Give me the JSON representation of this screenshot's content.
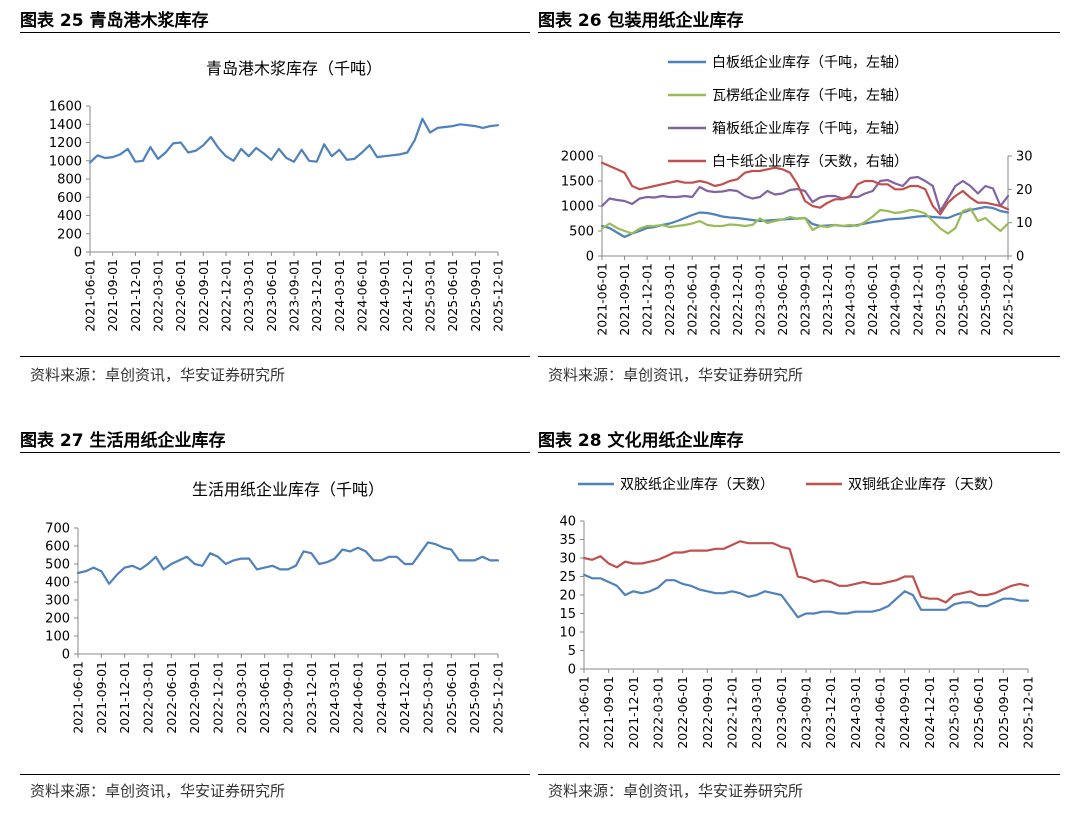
{
  "p25": {
    "fig_title": "图表 25 青岛港木浆库存",
    "source": "资料来源：卓创资讯，华安证券研究所"
  },
  "p26": {
    "fig_title": "图表 26 包装用纸企业库存",
    "source": "资料来源：卓创资讯，华安证券研究所"
  },
  "p27": {
    "fig_title": "图表 27 生活用纸企业库存",
    "source": "资料来源：卓创资讯，华安证券研究所"
  },
  "p28": {
    "fig_title": "图表 28 文化用纸企业库存",
    "source": "资料来源：卓创资讯，华安证券研究所"
  },
  "colors": {
    "blue": "#4f81bd",
    "green": "#9bbb59",
    "purple": "#8064a2",
    "red": "#c0504d"
  },
  "chart_data": [
    {
      "id": "c25",
      "type": "line",
      "title": "青岛港木浆库存（千吨）",
      "ylim": [
        0,
        1600
      ],
      "yticks": [
        0,
        200,
        400,
        600,
        800,
        1000,
        1200,
        1400,
        1600
      ],
      "x_start": "2021-06",
      "n": 55,
      "xticks": [
        "2021-06-01",
        "2021-09-01",
        "2021-12-01",
        "2022-03-01",
        "2022-06-01",
        "2022-09-01",
        "2022-12-01",
        "2023-03-01",
        "2023-06-01",
        "2023-09-01",
        "2023-12-01",
        "2024-03-01",
        "2024-06-01",
        "2024-09-01",
        "2024-12-01",
        "2025-03-01",
        "2025-06-01",
        "2025-09-01",
        "2025-12-01"
      ],
      "legend": "none",
      "series": [
        {
          "color": "#4f81bd",
          "values": [
            980,
            1060,
            1030,
            1040,
            1070,
            1130,
            990,
            1000,
            1150,
            1020,
            1090,
            1190,
            1200,
            1090,
            1110,
            1170,
            1260,
            1140,
            1050,
            1000,
            1130,
            1050,
            1140,
            1080,
            1010,
            1130,
            1030,
            990,
            1120,
            1000,
            990,
            1180,
            1050,
            1120,
            1010,
            1020,
            1090,
            1170,
            1040,
            1050,
            1060,
            1070,
            1090,
            1230,
            1460,
            1310,
            1360,
            1370,
            1380,
            1400,
            1390,
            1380,
            1360,
            1380,
            1390
          ]
        }
      ]
    },
    {
      "id": "c26",
      "type": "line",
      "title": "",
      "ylim": [
        0,
        2000
      ],
      "yticks": [
        0,
        500,
        1000,
        1500,
        2000
      ],
      "y2lim": [
        0,
        30
      ],
      "y2ticks": [
        0,
        10,
        20,
        30
      ],
      "x_start": "2021-06",
      "n": 55,
      "xticks": [
        "2021-06-01",
        "2021-09-01",
        "2021-12-01",
        "2022-03-01",
        "2022-06-01",
        "2022-09-01",
        "2022-12-01",
        "2023-03-01",
        "2023-06-01",
        "2023-09-01",
        "2023-12-01",
        "2024-03-01",
        "2024-06-01",
        "2024-09-01",
        "2024-12-01",
        "2025-03-01",
        "2025-06-01",
        "2025-09-01",
        "2025-12-01"
      ],
      "legend": "top",
      "series": [
        {
          "name": "白板纸企业库存（千吨，左轴）",
          "color": "#4f81bd",
          "axis": "left",
          "values": [
            600,
            560,
            470,
            380,
            450,
            500,
            560,
            580,
            620,
            650,
            700,
            760,
            820,
            870,
            860,
            830,
            790,
            770,
            760,
            740,
            720,
            700,
            710,
            720,
            730,
            740,
            750,
            760,
            640,
            600,
            610,
            620,
            600,
            600,
            620,
            650,
            680,
            700,
            730,
            740,
            750,
            770,
            790,
            800,
            780,
            770,
            760,
            820,
            870,
            920,
            950,
            980,
            960,
            900,
            870
          ]
        },
        {
          "name": "瓦楞纸企业库存（千吨，左轴）",
          "color": "#9bbb59",
          "axis": "left",
          "values": [
            550,
            650,
            560,
            500,
            450,
            550,
            600,
            600,
            620,
            580,
            600,
            620,
            650,
            700,
            620,
            600,
            600,
            630,
            620,
            600,
            620,
            750,
            660,
            700,
            730,
            780,
            740,
            760,
            520,
            600,
            580,
            620,
            600,
            620,
            600,
            680,
            790,
            920,
            900,
            860,
            880,
            920,
            900,
            850,
            700,
            550,
            450,
            560,
            900,
            950,
            700,
            760,
            620,
            500,
            650
          ]
        },
        {
          "name": "箱板纸企业库存（千吨，左轴）",
          "color": "#8064a2",
          "axis": "left",
          "values": [
            1000,
            1150,
            1120,
            1100,
            1040,
            1150,
            1180,
            1170,
            1200,
            1180,
            1180,
            1200,
            1180,
            1380,
            1300,
            1280,
            1290,
            1320,
            1300,
            1200,
            1150,
            1180,
            1300,
            1230,
            1250,
            1320,
            1340,
            1300,
            1080,
            1170,
            1200,
            1200,
            1150,
            1180,
            1180,
            1250,
            1300,
            1500,
            1520,
            1450,
            1400,
            1560,
            1580,
            1500,
            1400,
            900,
            1150,
            1400,
            1500,
            1400,
            1250,
            1400,
            1350,
            1000,
            1200
          ]
        },
        {
          "name": "白卡纸企业库存（天数，右轴）",
          "color": "#c0504d",
          "axis": "right",
          "values": [
            28,
            27,
            26,
            25,
            21,
            20,
            20.5,
            21,
            21.5,
            22,
            22.5,
            22,
            22,
            22.5,
            22,
            21,
            21.5,
            22.5,
            23,
            25,
            25.5,
            25.5,
            26,
            26.5,
            26,
            25,
            21.5,
            16.5,
            15,
            14.5,
            16,
            17,
            17,
            18,
            21.5,
            22.5,
            22.5,
            21.5,
            21.5,
            20,
            20,
            21,
            21,
            20,
            15,
            12.5,
            16,
            18,
            19.5,
            17.5,
            16,
            16,
            15.5,
            15,
            14
          ]
        }
      ]
    },
    {
      "id": "c27",
      "type": "line",
      "title": "生活用纸企业库存（千吨）",
      "ylim": [
        0,
        700
      ],
      "yticks": [
        0,
        100,
        200,
        300,
        400,
        500,
        600,
        700
      ],
      "x_start": "2021-06",
      "n": 55,
      "xticks": [
        "2021-06-01",
        "2021-09-01",
        "2021-12-01",
        "2022-03-01",
        "2022-06-01",
        "2022-09-01",
        "2022-12-01",
        "2023-03-01",
        "2023-06-01",
        "2023-09-01",
        "2023-12-01",
        "2024-03-01",
        "2024-06-01",
        "2024-09-01",
        "2024-12-01",
        "2025-03-01",
        "2025-06-01",
        "2025-09-01",
        "2025-12-01"
      ],
      "legend": "none",
      "series": [
        {
          "color": "#4f81bd",
          "values": [
            450,
            460,
            480,
            460,
            390,
            440,
            480,
            490,
            470,
            500,
            540,
            470,
            500,
            520,
            540,
            500,
            490,
            560,
            540,
            500,
            520,
            530,
            530,
            470,
            480,
            490,
            470,
            470,
            490,
            570,
            560,
            500,
            510,
            530,
            580,
            570,
            590,
            570,
            520,
            520,
            540,
            540,
            500,
            500,
            560,
            620,
            610,
            590,
            580,
            520,
            520,
            520,
            540,
            520,
            520
          ]
        }
      ]
    },
    {
      "id": "c28",
      "type": "line",
      "title": "",
      "ylim": [
        0,
        40
      ],
      "yticks": [
        0,
        5,
        10,
        15,
        20,
        25,
        30,
        35,
        40
      ],
      "x_start": "2021-06",
      "n": 55,
      "xticks": [
        "2021-06-01",
        "2021-09-01",
        "2021-12-01",
        "2022-03-01",
        "2022-06-01",
        "2022-09-01",
        "2022-12-01",
        "2023-03-01",
        "2023-06-01",
        "2023-09-01",
        "2023-12-01",
        "2024-03-01",
        "2024-06-01",
        "2024-09-01",
        "2024-12-01",
        "2025-03-01",
        "2025-06-01",
        "2025-09-01",
        "2025-12-01"
      ],
      "legend": "top-row",
      "series": [
        {
          "name": "双胶纸企业库存（天数）",
          "color": "#4f81bd",
          "values": [
            25.5,
            24.5,
            24.5,
            23.5,
            22.5,
            20,
            21,
            20.5,
            21,
            22,
            24,
            24,
            23,
            22.5,
            21.5,
            21,
            20.5,
            20.5,
            21,
            20.5,
            19.5,
            20,
            21,
            20.5,
            20,
            17,
            14,
            15,
            15,
            15.5,
            15.5,
            15,
            15,
            15.5,
            15.5,
            15.5,
            16,
            17,
            19,
            21,
            20,
            16,
            16,
            16,
            16,
            17.5,
            18,
            18,
            17,
            17,
            18,
            19,
            19,
            18.5,
            18.5
          ]
        },
        {
          "name": "双铜纸企业库存（天数）",
          "color": "#c0504d",
          "values": [
            30,
            29.5,
            30.5,
            28.5,
            27.5,
            29,
            28.5,
            28.5,
            29,
            29.5,
            30.5,
            31.5,
            31.5,
            32,
            32,
            32,
            32.5,
            32.5,
            33.5,
            34.5,
            34,
            34,
            34,
            34,
            33,
            32.5,
            25,
            24.5,
            23.5,
            24,
            23.5,
            22.5,
            22.5,
            23,
            23.5,
            23,
            23,
            23.5,
            24,
            25,
            25,
            19.5,
            19,
            19,
            18,
            20,
            20.5,
            21,
            20,
            20,
            20.5,
            21.5,
            22.5,
            23,
            22.5
          ]
        }
      ]
    }
  ]
}
